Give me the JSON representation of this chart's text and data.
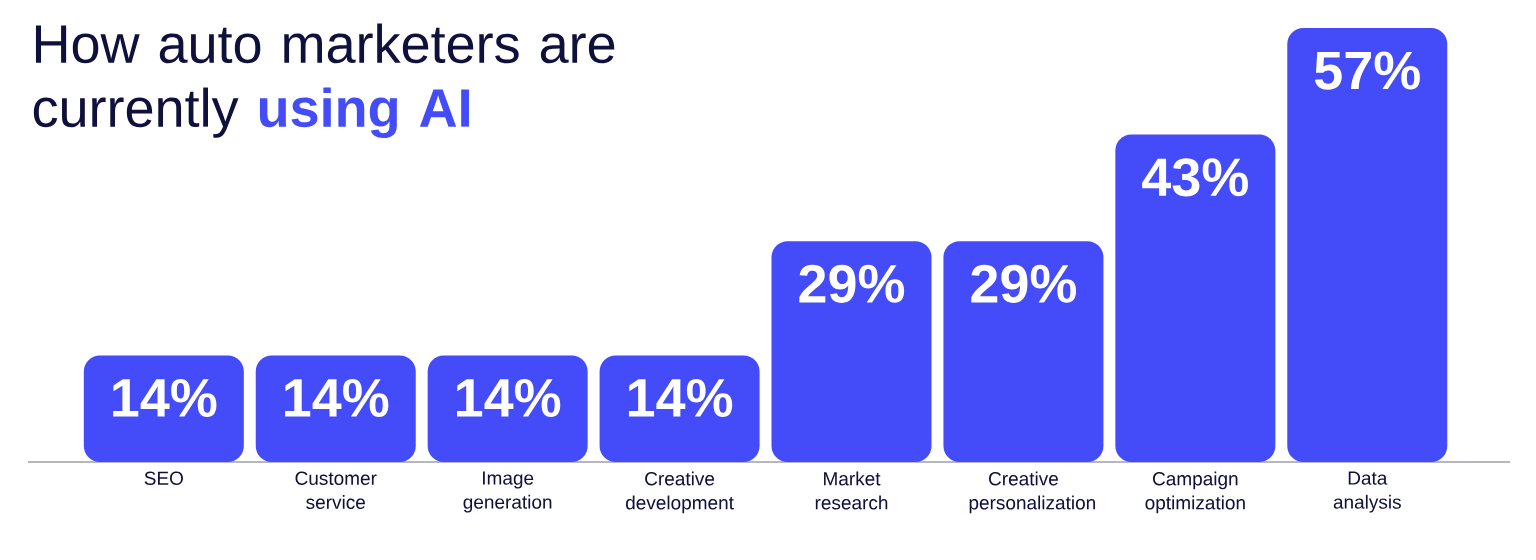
{
  "chart_data": {
    "type": "bar",
    "title": "How auto marketers are currently **using AI**",
    "categories": [
      "SEO",
      "Customer service",
      "Image generation",
      "Creative development",
      "Market research",
      "Creative personalization",
      "Campaign optimization",
      "Data analysis"
    ],
    "values": [
      14,
      14,
      14,
      14,
      29,
      29,
      43,
      57
    ],
    "value_labels": [
      "14%",
      "14%",
      "14%",
      "14%",
      "29%",
      "29%",
      "43%",
      "57%"
    ],
    "color": "#434cf8"
  }
}
